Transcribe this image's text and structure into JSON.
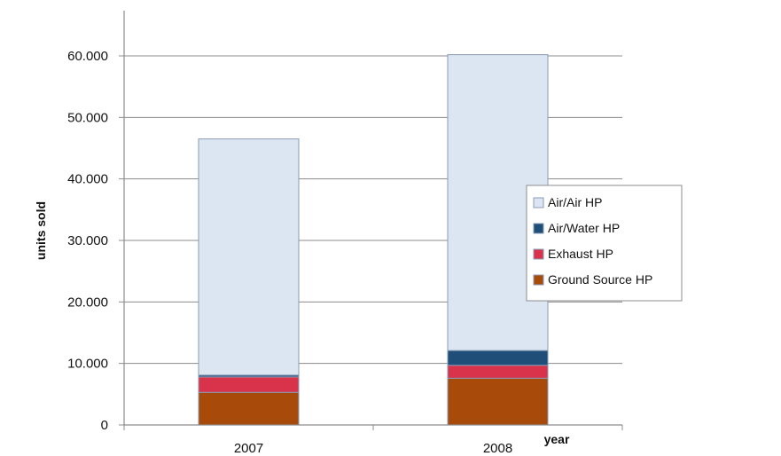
{
  "chart_data": {
    "type": "bar",
    "stacked": true,
    "categories": [
      "2007",
      "2008"
    ],
    "series": [
      {
        "name": "Ground Source HP",
        "values": [
          5300,
          7600
        ],
        "color": "#A84A0A"
      },
      {
        "name": "Exhaust HP",
        "values": [
          2500,
          2100
        ],
        "color": "#D8334A"
      },
      {
        "name": "Air/Water HP",
        "values": [
          300,
          2400
        ],
        "color": "#1F4E79"
      },
      {
        "name": "Air/Air HP",
        "values": [
          38400,
          48100
        ],
        "color": "#DCE6F2"
      }
    ],
    "legend_order": [
      "Air/Air HP",
      "Air/Water HP",
      "Exhaust HP",
      "Ground Source HP"
    ],
    "legend_position": "right",
    "title": "",
    "xlabel": "year",
    "ylabel": "units sold",
    "ylim": [
      0,
      60000
    ],
    "yticks": [
      0,
      10000,
      20000,
      30000,
      40000,
      50000,
      60000
    ],
    "ytick_labels": [
      "0",
      "10.000",
      "20.000",
      "30.000",
      "40.000",
      "50.000",
      "60.000"
    ],
    "grid": true,
    "bar_border_color": "#8A9BB5",
    "grid_color": "#8C8C8C"
  }
}
